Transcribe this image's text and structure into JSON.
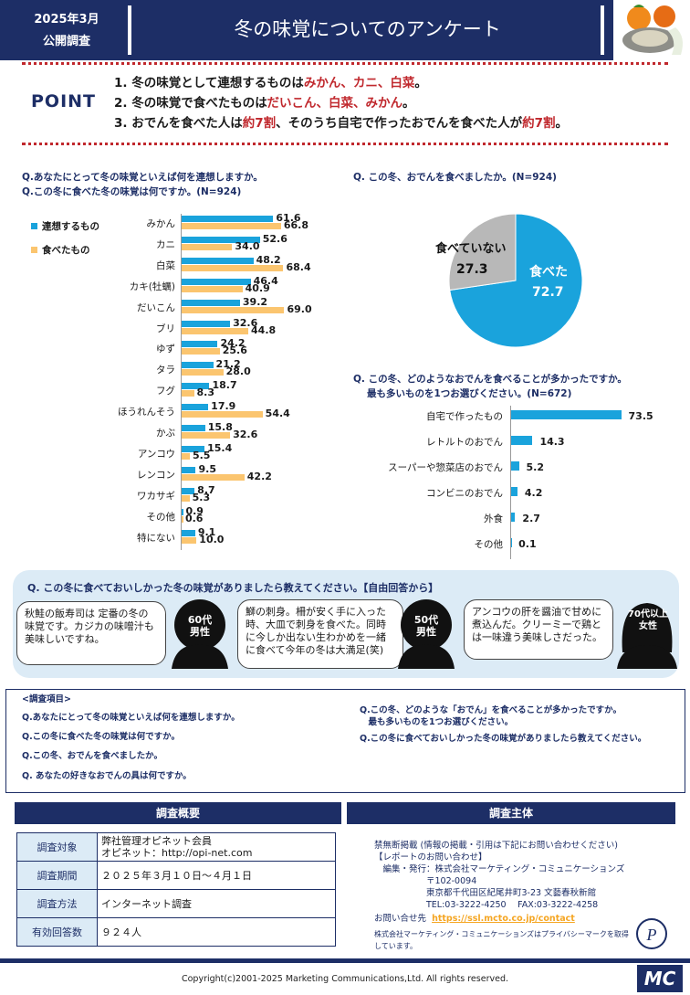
{
  "header": {
    "date_line1": "2025年3月",
    "date_line2": "公開調査",
    "title": "冬の味覚についてのアンケート"
  },
  "point": {
    "label": "POINT",
    "items": [
      {
        "num": "1.",
        "pre": "冬の味覚として連想するものは",
        "hl": "みかん、カニ、白菜",
        "post": "。",
        "pre2": "",
        "hl2": "",
        "post2": ""
      },
      {
        "num": "2.",
        "pre": "冬の味覚で食べたものは",
        "hl": "だいこん、白菜、みかん",
        "post": "。",
        "pre2": "",
        "hl2": "",
        "post2": ""
      },
      {
        "num": "3.",
        "pre": "おでんを食べた人は",
        "hl": "約7割",
        "post": "、そのうち自宅で作ったおでんを食べた人が",
        "pre2": "",
        "hl2": "約7割",
        "post2": "。"
      }
    ]
  },
  "bar_section": {
    "q1": "Q.あなたにとって冬の味覚といえば何を連想しますか。",
    "q2": "Q.この冬に食べた冬の味覚は何ですか。(N=924)",
    "legend1": "連想するもの",
    "legend2": "食べたもの",
    "colors": {
      "s1": "#1aa3dc",
      "s2": "#fbc56f"
    }
  },
  "pie_section": {
    "q": "Q. この冬、おでんを食べましたか。(N=924)"
  },
  "oden_section": {
    "q1": "Q. この冬、どのようなおでんを食べることが多かったですか。",
    "q2": "最も多いものを1つお選びください。(N=672)"
  },
  "chart_data": [
    {
      "type": "bar",
      "orientation": "horizontal",
      "categories": [
        "みかん",
        "カニ",
        "白菜",
        "カキ(牡蠣)",
        "だいこん",
        "ブリ",
        "ゆず",
        "タラ",
        "フグ",
        "ほうれんそう",
        "かぶ",
        "アンコウ",
        "レンコン",
        "ワカサギ",
        "その他",
        "特にない"
      ],
      "series": [
        {
          "name": "連想するもの",
          "values": [
            61.6,
            52.6,
            48.2,
            46.4,
            39.2,
            32.6,
            24.2,
            21.2,
            18.7,
            17.9,
            15.8,
            15.4,
            9.5,
            8.7,
            0.9,
            9.1
          ]
        },
        {
          "name": "食べたもの",
          "values": [
            66.8,
            34.0,
            68.4,
            40.9,
            69.0,
            44.8,
            25.6,
            28.0,
            8.3,
            54.4,
            32.6,
            5.5,
            42.2,
            5.3,
            0.6,
            10.0
          ]
        }
      ],
      "value_labels": [
        [
          "61.6",
          "52.6",
          "48.2",
          "46.4",
          "39.2",
          "32.6",
          "24.2",
          "21.2",
          "18.7",
          "17.9",
          "15.8",
          "15.4",
          "9.5",
          "8.7",
          "0.9",
          "9.1"
        ],
        [
          "66.8",
          "34.0",
          "68.4",
          "40.9",
          "69.0",
          "44.8",
          "25.6",
          "28.0",
          "8.3",
          "54.4",
          "32.6",
          "5.5",
          "42.2",
          "5.3",
          "0.6",
          "10.0"
        ]
      ],
      "xlim": [
        0,
        100
      ]
    },
    {
      "type": "pie",
      "slices": [
        {
          "label": "食べた",
          "value": 72.7,
          "value_label": "72.7",
          "color": "#1aa3dc"
        },
        {
          "label": "食べていない",
          "value": 27.3,
          "value_label": "27.3",
          "color": "#b8b8b8"
        }
      ]
    },
    {
      "type": "bar",
      "orientation": "horizontal",
      "categories": [
        "自宅で作ったもの",
        "レトルトのおでん",
        "スーパーや惣菜店のおでん",
        "コンビニのおでん",
        "外食",
        "その他"
      ],
      "values": [
        73.5,
        14.3,
        5.2,
        4.2,
        2.7,
        0.1
      ],
      "value_labels": [
        "73.5",
        "14.3",
        "5.2",
        "4.2",
        "2.7",
        "0.1"
      ],
      "xlim": [
        0,
        100
      ],
      "color": "#1aa3dc"
    }
  ],
  "free": {
    "q": "Q. この冬に食べておいしかった冬の味覚がありましたら教えてください。【自由回答から】",
    "comments": [
      {
        "text": "秋鮭の飯寿司は 定番の冬の味覚です。カジカの味噌汁も美味しいですね。",
        "age": "60代",
        "gender": "男性"
      },
      {
        "text": "鰤の刺身。柵が安く手に入った時、大皿で刺身を食べた。同時に今しか出ない生わかめを一緒に食べて今年の冬は大満足(笑)",
        "age": "50代",
        "gender": "男性"
      },
      {
        "text": "アンコウの肝を醤油で甘めに煮込んだ。クリーミーで鶏とは一味違う美味しさだった。",
        "age": "70代以上",
        "gender": "女性"
      }
    ]
  },
  "survey_items": {
    "title": "<調査項目>",
    "left": [
      "Q.あなたにとって冬の味覚といえば何を連想しますか。",
      "Q.この冬に食べた冬の味覚は何ですか。",
      "Q.この冬、おでんを食べましたか。",
      "Q. あなたの好きなおでんの具は何ですか。"
    ],
    "right": [
      "Q.この冬、どのような「おでん」を食べることが多かったですか。",
      "　最も多いものを1つお選びください。",
      "Q.この冬に食べておいしかった冬の味覚がありましたら教えてください。"
    ]
  },
  "summary": {
    "head": "調査概要",
    "rows": [
      {
        "k": "調査対象",
        "v1": "弊社管理オピネット会員",
        "v2": "オピネット：http://opi-net.com"
      },
      {
        "k": "調査期間",
        "v1": "２０２５年３月１０日～４月１日",
        "v2": ""
      },
      {
        "k": "調査方法",
        "v1": "インターネット調査",
        "v2": ""
      },
      {
        "k": "有効回答数",
        "v1": "９２４人",
        "v2": ""
      }
    ]
  },
  "sponsor": {
    "head": "調査主体",
    "lines": [
      "禁無断掲載 (情報の掲載・引用は下記にお問い合わせください)",
      "【レポートのお問い合わせ】",
      "　編集・発行：株式会社マーケティング・コミュニケーションズ",
      "　　　　　　〒102-0094",
      "　　　　　　東京都千代田区紀尾井町3-23 文藝春秋新館",
      "　　　　　　TEL:03-3222-4250　 FAX:03-3222-4258"
    ],
    "contact_label": "お問い合せ先",
    "contact_url": "https://ssl.mcto.co.jp/contact",
    "privacy": "株式会社マーケティング・コミュニケーションズはプライバシーマークを取得しています。"
  },
  "footer": {
    "copyright": "Copyright(c)2001-2025 Marketing Communications,Ltd. All rights reserved.",
    "logo": "MC"
  }
}
